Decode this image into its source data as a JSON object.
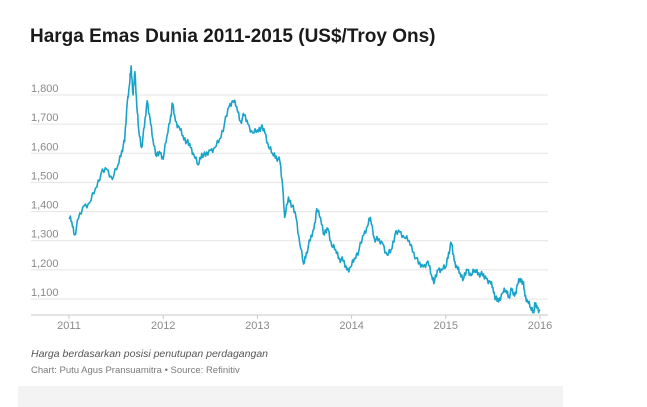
{
  "chart_data": {
    "type": "line",
    "title": "Harga Emas Dunia 2011-2015 (US$/Troy Ons)",
    "xlabel": "",
    "ylabel": "",
    "xlim": [
      2011.0,
      2016.0
    ],
    "ylim": [
      1050,
      1900
    ],
    "grid": true,
    "legend": "none",
    "x_ticks": [
      {
        "value": 2011,
        "label": "2011"
      },
      {
        "value": 2012,
        "label": "2012"
      },
      {
        "value": 2013,
        "label": "2013"
      },
      {
        "value": 2014,
        "label": "2014"
      },
      {
        "value": 2015,
        "label": "2015"
      },
      {
        "value": 2016,
        "label": "2016"
      }
    ],
    "y_ticks": [
      {
        "value": 1100,
        "label": "1,100"
      },
      {
        "value": 1200,
        "label": "1,200"
      },
      {
        "value": 1300,
        "label": "1,300"
      },
      {
        "value": 1400,
        "label": "1,400"
      },
      {
        "value": 1500,
        "label": "1,500"
      },
      {
        "value": 1600,
        "label": "1,600"
      },
      {
        "value": 1700,
        "label": "1,700"
      },
      {
        "value": 1800,
        "label": "1,800"
      }
    ],
    "series": [
      {
        "color": "#1aa3c9",
        "points": [
          [
            2011.0,
            1380
          ],
          [
            2011.03,
            1365
          ],
          [
            2011.06,
            1320
          ],
          [
            2011.1,
            1375
          ],
          [
            2011.16,
            1420
          ],
          [
            2011.22,
            1430
          ],
          [
            2011.28,
            1480
          ],
          [
            2011.34,
            1530
          ],
          [
            2011.4,
            1545
          ],
          [
            2011.46,
            1510
          ],
          [
            2011.52,
            1560
          ],
          [
            2011.56,
            1610
          ],
          [
            2011.59,
            1640
          ],
          [
            2011.62,
            1780
          ],
          [
            2011.64,
            1830
          ],
          [
            2011.66,
            1900
          ],
          [
            2011.68,
            1800
          ],
          [
            2011.7,
            1880
          ],
          [
            2011.72,
            1760
          ],
          [
            2011.74,
            1680
          ],
          [
            2011.77,
            1620
          ],
          [
            2011.8,
            1690
          ],
          [
            2011.83,
            1780
          ],
          [
            2011.86,
            1720
          ],
          [
            2011.89,
            1650
          ],
          [
            2011.93,
            1590
          ],
          [
            2011.97,
            1600
          ],
          [
            2012.0,
            1580
          ],
          [
            2012.04,
            1660
          ],
          [
            2012.08,
            1730
          ],
          [
            2012.1,
            1770
          ],
          [
            2012.13,
            1710
          ],
          [
            2012.17,
            1690
          ],
          [
            2012.21,
            1660
          ],
          [
            2012.25,
            1640
          ],
          [
            2012.29,
            1620
          ],
          [
            2012.33,
            1590
          ],
          [
            2012.37,
            1560
          ],
          [
            2012.41,
            1600
          ],
          [
            2012.45,
            1590
          ],
          [
            2012.5,
            1610
          ],
          [
            2012.55,
            1620
          ],
          [
            2012.6,
            1650
          ],
          [
            2012.65,
            1700
          ],
          [
            2012.7,
            1760
          ],
          [
            2012.74,
            1780
          ],
          [
            2012.78,
            1760
          ],
          [
            2012.82,
            1710
          ],
          [
            2012.86,
            1730
          ],
          [
            2012.9,
            1700
          ],
          [
            2012.95,
            1670
          ],
          [
            2013.0,
            1680
          ],
          [
            2013.04,
            1690
          ],
          [
            2013.08,
            1670
          ],
          [
            2013.12,
            1620
          ],
          [
            2013.16,
            1600
          ],
          [
            2013.2,
            1590
          ],
          [
            2013.24,
            1570
          ],
          [
            2013.27,
            1480
          ],
          [
            2013.29,
            1380
          ],
          [
            2013.33,
            1450
          ],
          [
            2013.37,
            1420
          ],
          [
            2013.41,
            1380
          ],
          [
            2013.45,
            1290
          ],
          [
            2013.49,
            1220
          ],
          [
            2013.52,
            1260
          ],
          [
            2013.56,
            1300
          ],
          [
            2013.6,
            1340
          ],
          [
            2013.63,
            1410
          ],
          [
            2013.67,
            1380
          ],
          [
            2013.71,
            1320
          ],
          [
            2013.75,
            1340
          ],
          [
            2013.79,
            1280
          ],
          [
            2013.83,
            1270
          ],
          [
            2013.87,
            1240
          ],
          [
            2013.91,
            1230
          ],
          [
            2013.95,
            1200
          ],
          [
            2013.99,
            1210
          ],
          [
            2014.03,
            1240
          ],
          [
            2014.08,
            1270
          ],
          [
            2014.13,
            1320
          ],
          [
            2014.17,
            1350
          ],
          [
            2014.2,
            1380
          ],
          [
            2014.24,
            1310
          ],
          [
            2014.28,
            1300
          ],
          [
            2014.33,
            1290
          ],
          [
            2014.38,
            1250
          ],
          [
            2014.42,
            1270
          ],
          [
            2014.46,
            1320
          ],
          [
            2014.51,
            1330
          ],
          [
            2014.56,
            1310
          ],
          [
            2014.61,
            1300
          ],
          [
            2014.66,
            1260
          ],
          [
            2014.71,
            1220
          ],
          [
            2014.76,
            1210
          ],
          [
            2014.81,
            1230
          ],
          [
            2014.85,
            1180
          ],
          [
            2014.88,
            1160
          ],
          [
            2014.92,
            1200
          ],
          [
            2014.96,
            1200
          ],
          [
            2015.0,
            1210
          ],
          [
            2015.03,
            1260
          ],
          [
            2015.06,
            1290
          ],
          [
            2015.09,
            1230
          ],
          [
            2015.12,
            1210
          ],
          [
            2015.15,
            1190
          ],
          [
            2015.19,
            1170
          ],
          [
            2015.23,
            1200
          ],
          [
            2015.27,
            1180
          ],
          [
            2015.31,
            1200
          ],
          [
            2015.35,
            1190
          ],
          [
            2015.39,
            1180
          ],
          [
            2015.43,
            1170
          ],
          [
            2015.47,
            1160
          ],
          [
            2015.5,
            1140
          ],
          [
            2015.53,
            1100
          ],
          [
            2015.56,
            1090
          ],
          [
            2015.6,
            1120
          ],
          [
            2015.64,
            1130
          ],
          [
            2015.67,
            1110
          ],
          [
            2015.7,
            1130
          ],
          [
            2015.73,
            1110
          ],
          [
            2015.76,
            1150
          ],
          [
            2015.79,
            1170
          ],
          [
            2015.82,
            1160
          ],
          [
            2015.84,
            1110
          ],
          [
            2015.87,
            1090
          ],
          [
            2015.9,
            1070
          ],
          [
            2015.93,
            1060
          ],
          [
            2015.95,
            1080
          ],
          [
            2015.97,
            1070
          ],
          [
            2016.0,
            1060
          ]
        ]
      }
    ]
  },
  "footer": {
    "note": "Harga berdasarkan posisi penutupan perdagangan",
    "source": "Chart: Putu Agus Pransuamitra • Source: Refinitiv"
  }
}
